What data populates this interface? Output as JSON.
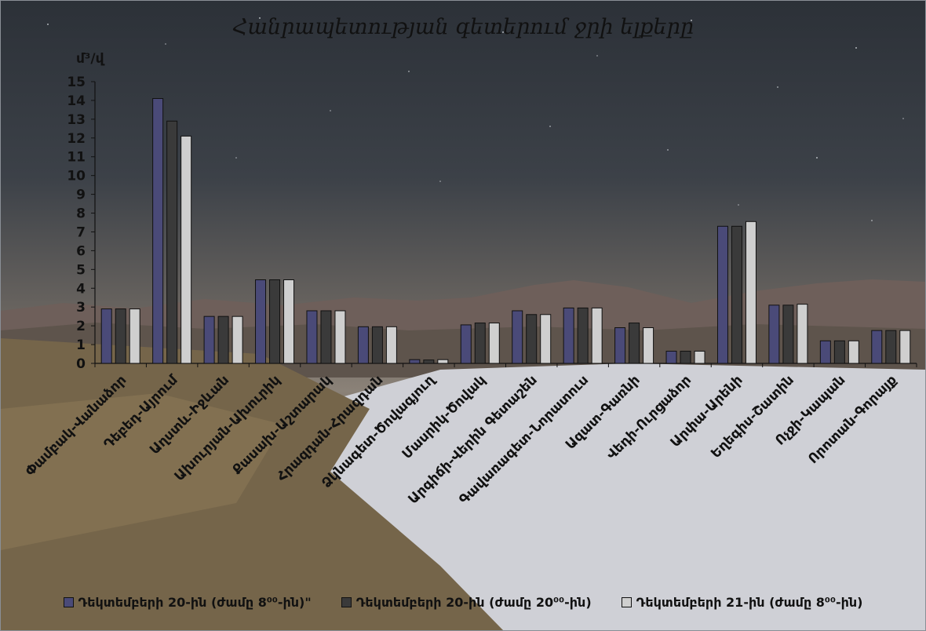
{
  "chart_data": {
    "type": "bar",
    "title": "Հանրապետության գետերում ջրի ելքերը",
    "ylabel": "մ³/վ",
    "ylim": [
      0,
      15
    ],
    "yticks": [
      0,
      1,
      2,
      3,
      4,
      5,
      6,
      7,
      8,
      9,
      10,
      11,
      12,
      13,
      14,
      15
    ],
    "grid": false,
    "legend_position": "bottom",
    "categories": [
      "Փամբակ-Վանաձոր",
      "Դեբեդ-Այրում",
      "Աղստև-Իջևան",
      "Ախուրյան-Ախուրիկ",
      "Քասախ-Աշտարակ",
      "Հրազդան-Հրազդան",
      "Ձկնագետ-Ծովագյուղ",
      "Մասրիկ-Ծովակ",
      "Արգիճի-Վերին Գետաշեն",
      "Գավառագետ-Նորատուս",
      "Ազատ-Գառնի",
      "Վեդի-Ուրցաձոր",
      "Արփա-Արենի",
      "Եղեգիս-Շատին",
      "Ոչջի-Կապան",
      "Որոտան-Գորայք"
    ],
    "series": [
      {
        "name": "Դեկտեմբերի 20-ին (ժամը 8⁰⁰-ին)\"",
        "color": "#4a4a78",
        "values": [
          2.9,
          14.1,
          2.5,
          4.45,
          2.8,
          1.95,
          0.2,
          2.05,
          2.8,
          2.95,
          1.9,
          0.65,
          7.3,
          3.1,
          1.2,
          1.75
        ]
      },
      {
        "name": "Դեկտեմբերի 20-ին (ժամը 20⁰⁰-ին)",
        "color": "#3a3a3a",
        "values": [
          2.9,
          12.9,
          2.5,
          4.45,
          2.8,
          1.95,
          0.18,
          2.15,
          2.6,
          2.95,
          2.15,
          0.65,
          7.3,
          3.1,
          1.2,
          1.75
        ]
      },
      {
        "name": "Դեկտեմբերի 21-ին (ժամը 8⁰⁰-ին)",
        "color": "#cfcfcf",
        "values": [
          2.9,
          12.1,
          2.5,
          4.45,
          2.8,
          1.95,
          0.2,
          2.15,
          2.6,
          2.95,
          1.9,
          0.65,
          7.55,
          3.15,
          1.2,
          1.75
        ]
      }
    ]
  }
}
